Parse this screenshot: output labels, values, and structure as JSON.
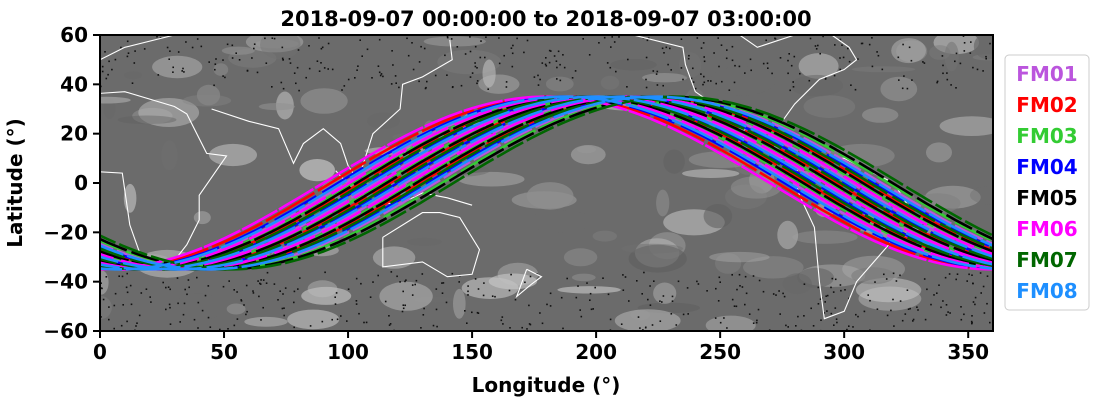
{
  "chart_data": {
    "type": "line",
    "title": "2018-09-07 00:00:00 to 2018-09-07 03:00:00",
    "xlabel": "Longitude (°)",
    "ylabel": "Latitude (°)",
    "xlim": [
      0,
      360
    ],
    "ylim": [
      -60,
      60
    ],
    "xticks": [
      0,
      50,
      100,
      150,
      200,
      250,
      300,
      350
    ],
    "yticks": [
      -60,
      -40,
      -20,
      0,
      20,
      40,
      60
    ],
    "grid": false,
    "background": "grayscale infrared satellite image with white coastlines",
    "legend_position": "right, outside plot",
    "series": [
      {
        "name": "FM01",
        "color": "#bb55dd",
        "phases": [
          3.0,
          15.0,
          27.0,
          39.0
        ]
      },
      {
        "name": "FM02",
        "color": "#ff0000",
        "phases": [
          -3.0,
          9.0,
          21.0,
          33.0
        ]
      },
      {
        "name": "FM03",
        "color": "#33cc33",
        "phases": [
          6.0,
          18.0,
          30.0,
          42.0
        ]
      },
      {
        "name": "FM04",
        "color": "#0000ff",
        "phases": [
          0.0,
          12.0,
          24.0,
          36.0
        ]
      },
      {
        "name": "FM05",
        "color": "#000000",
        "phases": [
          7.5,
          19.5,
          31.5,
          43.5
        ]
      },
      {
        "name": "FM06",
        "color": "#ff00ff",
        "phases": [
          -6.0,
          4.5,
          16.5,
          28.5
        ]
      },
      {
        "name": "FM07",
        "color": "#006600",
        "phases": [
          10.5,
          22.5,
          34.5,
          46.5
        ]
      },
      {
        "name": "FM08",
        "color": "#1e8fff",
        "phases": [
          1.5,
          13.5,
          25.5,
          37.5
        ]
      }
    ],
    "track_model": {
      "amplitude_deg": 35,
      "phase_unit": "longitude offset (°)",
      "base_center_lon": 210
    }
  }
}
